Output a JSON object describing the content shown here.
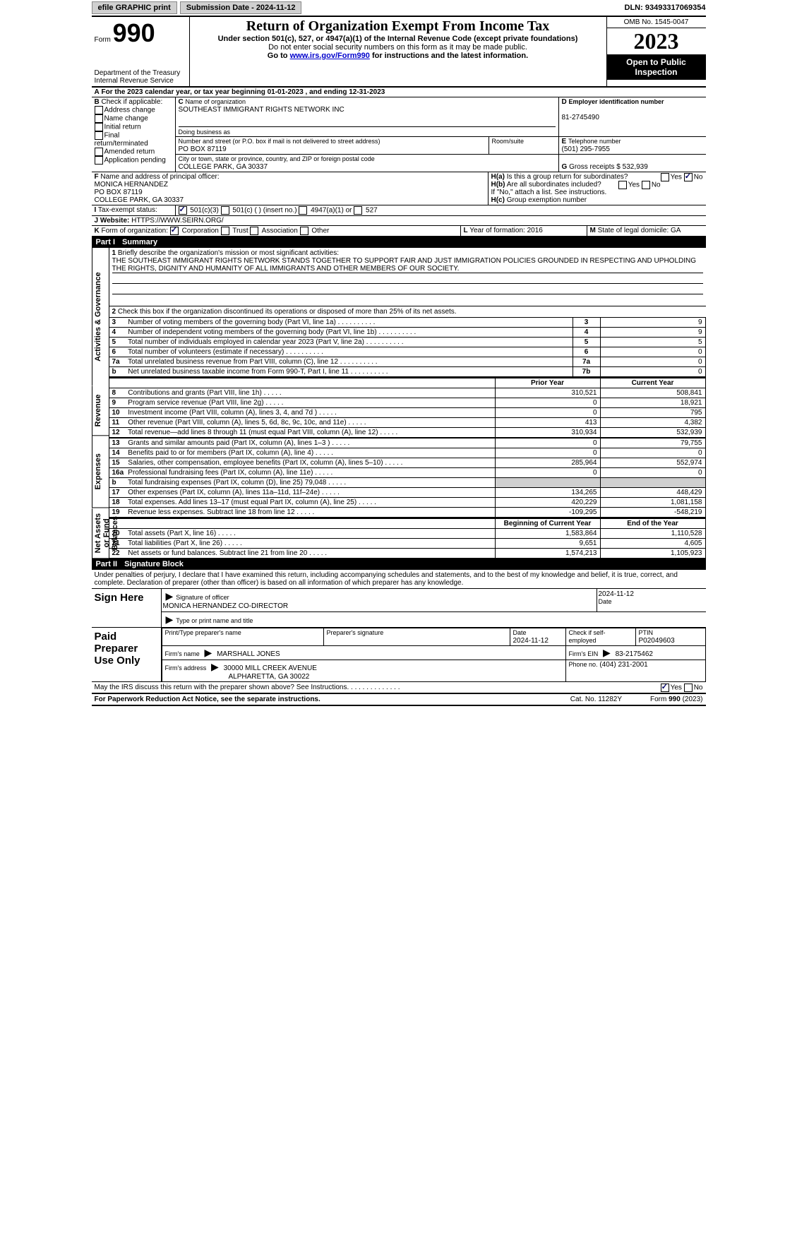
{
  "topbar": {
    "efile": "efile GRAPHIC print",
    "submission": "Submission Date - 2024-11-12",
    "dln": "DLN: 93493317069354"
  },
  "header": {
    "form_word": "Form",
    "form_num": "990",
    "title": "Return of Organization Exempt From Income Tax",
    "subtitle": "Under section 501(c), 527, or 4947(a)(1) of the Internal Revenue Code (except private foundations)",
    "warn": "Do not enter social security numbers on this form as it may be made public.",
    "goto_pre": "Go to ",
    "goto_link": "www.irs.gov/Form990",
    "goto_post": " for instructions and the latest information.",
    "dept": "Department of the Treasury Internal Revenue Service",
    "omb": "OMB No. 1545-0047",
    "year": "2023",
    "open": "Open to Public Inspection"
  },
  "sectionA": {
    "period": "For the 2023 calendar year, or tax year beginning 01-01-2023    , and ending 12-31-2023",
    "check_label": "Check if applicable:",
    "checks": [
      "Address change",
      "Name change",
      "Initial return",
      "Final return/terminated",
      "Amended return",
      "Application pending"
    ],
    "name_label": "Name of organization",
    "org_name": "SOUTHEAST IMMIGRANT RIGHTS NETWORK INC",
    "dba_label": "Doing business as",
    "street_label": "Number and street (or P.O. box if mail is not delivered to street address)",
    "street": "PO BOX 87119",
    "room_label": "Room/suite",
    "city_label": "City or town, state or province, country, and ZIP or foreign postal code",
    "city": "COLLEGE PARK, GA   30337",
    "ein_label": "Employer identification number",
    "ein": "81-2745490",
    "phone_label": "Telephone number",
    "phone": "(501) 295-7955",
    "gross_label": "Gross receipts $",
    "gross": "532,939",
    "officer_label": "Name and address of principal officer:",
    "officer_name": "MONICA HERNANDEZ",
    "officer_addr1": "PO BOX 87119",
    "officer_addr2": "COLLEGE PARK, GA   30337",
    "ha": "Is this a group return for subordinates?",
    "hb": "Are all subordinates included?",
    "hb_note": "If \"No,\" attach a list. See instructions.",
    "hc": "Group exemption number",
    "tax_status": "Tax-exempt status:",
    "c3": "501(c)(3)",
    "cx": "501(c) (  ) (insert no.)",
    "c4947": "4947(a)(1) or",
    "c527": "527",
    "website_label": "Website:",
    "website": "HTTPS://WWW.SEIRN.ORG/",
    "formorg_label": "Form of organization:",
    "formorg_opts": [
      "Corporation",
      "Trust",
      "Association",
      "Other"
    ],
    "yr_label": "Year of formation:",
    "yr": "2016",
    "dom_label": "State of legal domicile:",
    "dom": "GA"
  },
  "part1": {
    "title": "Part I",
    "heading": "Summary",
    "q1_label": "Briefly describe the organization's mission or most significant activities:",
    "q1_text": "THE SOUTHEAST IMMIGRANT RIGHTS NETWORK STANDS TOGETHER TO SUPPORT FAIR AND JUST IMMIGRATION POLICIES GROUNDED IN RESPECTING AND UPHOLDING THE RIGHTS, DIGNITY AND HUMANITY OF ALL IMMIGRANTS AND OTHER MEMBERS OF OUR SOCIETY.",
    "q2": "Check this box       if the organization discontinued its operations or disposed of more than 25% of its net assets.",
    "lines_a": [
      {
        "n": "3",
        "t": "Number of voting members of the governing body (Part VI, line 1a)",
        "lab": "3",
        "v": "9"
      },
      {
        "n": "4",
        "t": "Number of independent voting members of the governing body (Part VI, line 1b)",
        "lab": "4",
        "v": "9"
      },
      {
        "n": "5",
        "t": "Total number of individuals employed in calendar year 2023 (Part V, line 2a)",
        "lab": "5",
        "v": "5"
      },
      {
        "n": "6",
        "t": "Total number of volunteers (estimate if necessary)",
        "lab": "6",
        "v": "0"
      },
      {
        "n": "7a",
        "t": "Total unrelated business revenue from Part VIII, column (C), line 12",
        "lab": "7a",
        "v": "0"
      },
      {
        "n": "b",
        "t": "Net unrelated business taxable income from Form 990-T, Part I, line 11",
        "lab": "7b",
        "v": "0"
      }
    ],
    "col_prior": "Prior Year",
    "col_curr": "Current Year",
    "lines_r": [
      {
        "n": "8",
        "t": "Contributions and grants (Part VIII, line 1h)",
        "p": "310,521",
        "c": "508,841"
      },
      {
        "n": "9",
        "t": "Program service revenue (Part VIII, line 2g)",
        "p": "0",
        "c": "18,921"
      },
      {
        "n": "10",
        "t": "Investment income (Part VIII, column (A), lines 3, 4, and 7d )",
        "p": "0",
        "c": "795"
      },
      {
        "n": "11",
        "t": "Other revenue (Part VIII, column (A), lines 5, 6d, 8c, 9c, 10c, and 11e)",
        "p": "413",
        "c": "4,382"
      },
      {
        "n": "12",
        "t": "Total revenue—add lines 8 through 11 (must equal Part VIII, column (A), line 12)",
        "p": "310,934",
        "c": "532,939"
      }
    ],
    "lines_e": [
      {
        "n": "13",
        "t": "Grants and similar amounts paid (Part IX, column (A), lines 1–3 )",
        "p": "0",
        "c": "79,755"
      },
      {
        "n": "14",
        "t": "Benefits paid to or for members (Part IX, column (A), line 4)",
        "p": "0",
        "c": "0"
      },
      {
        "n": "15",
        "t": "Salaries, other compensation, employee benefits (Part IX, column (A), lines 5–10)",
        "p": "285,964",
        "c": "552,974"
      },
      {
        "n": "16a",
        "t": "Professional fundraising fees (Part IX, column (A), line 11e)",
        "p": "0",
        "c": "0"
      },
      {
        "n": "b",
        "t": "Total fundraising expenses (Part IX, column (D), line 25) 79,048",
        "p": "",
        "c": "",
        "shade": true
      },
      {
        "n": "17",
        "t": "Other expenses (Part IX, column (A), lines 11a–11d, 11f–24e)",
        "p": "134,265",
        "c": "448,429"
      },
      {
        "n": "18",
        "t": "Total expenses. Add lines 13–17 (must equal Part IX, column (A), line 25)",
        "p": "420,229",
        "c": "1,081,158"
      },
      {
        "n": "19",
        "t": "Revenue less expenses. Subtract line 18 from line 12",
        "p": "-109,295",
        "c": "-548,219"
      }
    ],
    "col_beg": "Beginning of Current Year",
    "col_end": "End of the Year",
    "lines_n": [
      {
        "n": "20",
        "t": "Total assets (Part X, line 16)",
        "p": "1,583,864",
        "c": "1,110,528"
      },
      {
        "n": "21",
        "t": "Total liabilities (Part X, line 26)",
        "p": "9,651",
        "c": "4,605"
      },
      {
        "n": "22",
        "t": "Net assets or fund balances. Subtract line 21 from line 20",
        "p": "1,574,213",
        "c": "1,105,923"
      }
    ],
    "side_gov": "Activities & Governance",
    "side_rev": "Revenue",
    "side_exp": "Expenses",
    "side_net": "Net Assets or Fund Balances"
  },
  "part2": {
    "title": "Part II",
    "heading": "Signature Block",
    "perjury": "Under penalties of perjury, I declare that I have examined this return, including accompanying schedules and statements, and to the best of my knowledge and belief, it is true, correct, and complete. Declaration of preparer (other than officer) is based on all information of which preparer has any knowledge.",
    "sign_here": "Sign Here",
    "sig_officer": "Signature of officer",
    "sig_name": "MONICA HERNANDEZ  CO-DIRECTOR",
    "sig_type": "Type or print name and title",
    "date": "Date",
    "date_val": "2024-11-12",
    "paid": "Paid Preparer Use Only",
    "prep_name_lab": "Print/Type preparer's name",
    "prep_sig_lab": "Preparer's signature",
    "prep_date": "2024-11-12",
    "check_self": "Check         if self-employed",
    "ptin_lab": "PTIN",
    "ptin": "P02049603",
    "firm_name_lab": "Firm's name",
    "firm_name": "MARSHALL JONES",
    "firm_ein_lab": "Firm's EIN",
    "firm_ein": "83-2175462",
    "firm_addr_lab": "Firm's address",
    "firm_addr1": "30000 MILL CREEK AVENUE",
    "firm_addr2": "ALPHARETTA, GA   30022",
    "firm_phone_lab": "Phone no.",
    "firm_phone": "(404) 231-2001",
    "discuss": "May the IRS discuss this return with the preparer shown above? See Instructions.",
    "yes": "Yes",
    "no": "No"
  },
  "footer": {
    "paperwork": "For Paperwork Reduction Act Notice, see the separate instructions.",
    "cat": "Cat. No. 11282Y",
    "form": "Form 990 (2023)"
  }
}
